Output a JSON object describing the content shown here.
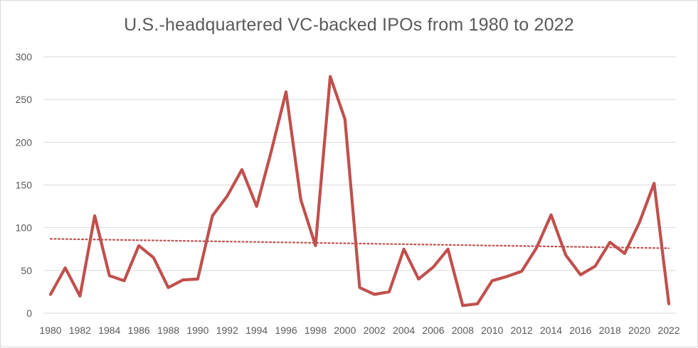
{
  "chart_data": {
    "type": "line",
    "title": "U.S.-headquartered VC-backed IPOs from 1980 to 2022",
    "xlabel": "",
    "ylabel": "",
    "ylim": [
      0,
      300
    ],
    "yticks": [
      0,
      50,
      100,
      150,
      200,
      250,
      300
    ],
    "x_tick_labels": [
      "1980",
      "1982",
      "1984",
      "1986",
      "1988",
      "1990",
      "1992",
      "1994",
      "1996",
      "1998",
      "2000",
      "2002",
      "2004",
      "2006",
      "2008",
      "2010",
      "2012",
      "2014",
      "2016",
      "2018",
      "2020",
      "2022"
    ],
    "grid": true,
    "legend": "none",
    "series": [
      {
        "name": "VC-backed IPOs",
        "color": "#c0504d",
        "x": [
          1980,
          1981,
          1982,
          1983,
          1984,
          1985,
          1986,
          1987,
          1988,
          1989,
          1990,
          1991,
          1992,
          1993,
          1994,
          1995,
          1996,
          1997,
          1998,
          1999,
          2000,
          2001,
          2002,
          2003,
          2004,
          2005,
          2006,
          2007,
          2008,
          2009,
          2010,
          2011,
          2012,
          2013,
          2014,
          2015,
          2016,
          2017,
          2018,
          2019,
          2020,
          2021,
          2022
        ],
        "values": [
          22,
          53,
          20,
          114,
          44,
          38,
          79,
          65,
          30,
          39,
          40,
          114,
          137,
          168,
          125,
          190,
          259,
          133,
          79,
          277,
          227,
          30,
          22,
          25,
          75,
          40,
          54,
          75,
          9,
          11,
          38,
          43,
          49,
          76,
          115,
          68,
          45,
          55,
          83,
          70,
          106,
          152,
          11
        ]
      }
    ],
    "trendline": {
      "type": "linear",
      "color": "#c0504d",
      "style": "dotted",
      "start": [
        1980,
        87
      ],
      "end": [
        2022,
        76
      ]
    }
  }
}
